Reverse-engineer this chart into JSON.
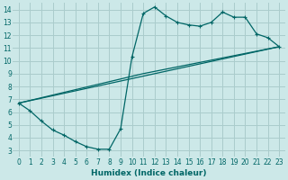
{
  "xlabel": "Humidex (Indice chaleur)",
  "bg_color": "#cce8e8",
  "grid_color": "#aacccc",
  "line_color": "#006666",
  "xlim": [
    -0.5,
    23.5
  ],
  "ylim": [
    2.5,
    14.5
  ],
  "xticks": [
    0,
    1,
    2,
    3,
    4,
    5,
    6,
    7,
    8,
    9,
    10,
    11,
    12,
    13,
    14,
    15,
    16,
    17,
    18,
    19,
    20,
    21,
    22,
    23
  ],
  "yticks": [
    3,
    4,
    5,
    6,
    7,
    8,
    9,
    10,
    11,
    12,
    13,
    14
  ],
  "line1_x": [
    0,
    1,
    2,
    3,
    4,
    5,
    6,
    7,
    8,
    9,
    10,
    11,
    12,
    13,
    14,
    15,
    16,
    17,
    18,
    19,
    20,
    21,
    22,
    23
  ],
  "line1_y": [
    6.7,
    6.1,
    5.3,
    4.6,
    4.2,
    3.7,
    3.3,
    3.1,
    3.1,
    4.7,
    10.3,
    13.7,
    14.2,
    13.5,
    13.0,
    12.8,
    12.7,
    13.0,
    13.8,
    13.4,
    13.4,
    12.1,
    11.8,
    11.1
  ],
  "line2_x": [
    0,
    11,
    23
  ],
  "line2_y": [
    6.7,
    9.0,
    11.1
  ],
  "line3_x": [
    0,
    23
  ],
  "line3_y": [
    6.7,
    11.1
  ]
}
